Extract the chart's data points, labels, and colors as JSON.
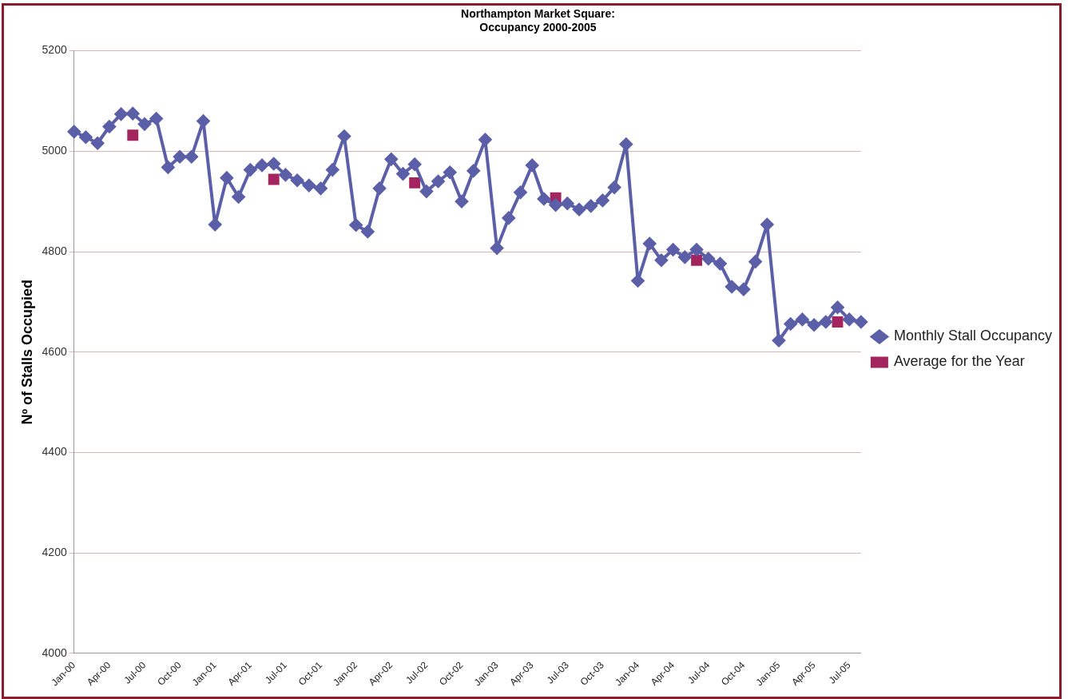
{
  "chart_data": {
    "type": "line",
    "title": "Northampton Market Square:\nOccupancy 2000-2005",
    "ylabel": "Nº of Stalls Occupied",
    "categories": [
      "Jan-00",
      null,
      null,
      "Apr-00",
      null,
      null,
      "Jul-00",
      null,
      null,
      "Oct-00",
      null,
      null,
      "Jan-01",
      null,
      null,
      "Apr-01",
      null,
      null,
      "Jul-01",
      null,
      null,
      "Oct-01",
      null,
      null,
      "Jan-02",
      null,
      null,
      "Apr-02",
      null,
      null,
      "Jul-02",
      null,
      null,
      "Oct-02",
      null,
      null,
      "Jan-03",
      null,
      null,
      "Apr-03",
      null,
      null,
      "Jul-03",
      null,
      null,
      "Oct-03",
      null,
      null,
      "Jan-04",
      null,
      null,
      "Apr-04",
      null,
      null,
      "Jul-04",
      null,
      null,
      "Oct-04",
      null,
      null,
      "Jan-05",
      null,
      null,
      "Apr-05",
      null,
      null,
      "Jul-05",
      null
    ],
    "series": [
      {
        "name": "Monthly Stall Occupancy",
        "marker": "diamond",
        "color": "#5b5fa8",
        "values": [
          5039,
          5028,
          5016,
          5049,
          5074,
          5075,
          5054,
          5065,
          4968,
          4989,
          4989,
          5060,
          4854,
          4947,
          4909,
          4963,
          4972,
          4975,
          4953,
          4942,
          4932,
          4926,
          4963,
          5030,
          4853,
          4840,
          4926,
          4984,
          4955,
          4974,
          4920,
          4940,
          4958,
          4900,
          4961,
          5023,
          4807,
          4867,
          4918,
          4972,
          4905,
          4893,
          4896,
          4884,
          4891,
          4902,
          4928,
          5014,
          4742,
          4816,
          4783,
          4804,
          4789,
          4804,
          4786,
          4776,
          4730,
          4725,
          4780,
          4854,
          4623,
          4656,
          4665,
          4654,
          4660,
          4689,
          4665,
          4660
        ]
      },
      {
        "name": "Average for the Year",
        "type": "scatter",
        "marker": "square",
        "color": "#a3245e",
        "values": [
          null,
          null,
          null,
          null,
          null,
          5032,
          null,
          null,
          null,
          null,
          null,
          null,
          null,
          null,
          null,
          null,
          null,
          4944,
          null,
          null,
          null,
          null,
          null,
          null,
          null,
          null,
          null,
          null,
          null,
          4937,
          null,
          null,
          null,
          null,
          null,
          null,
          null,
          null,
          null,
          null,
          null,
          4907,
          null,
          null,
          null,
          null,
          null,
          null,
          null,
          null,
          null,
          null,
          null,
          4783,
          null,
          null,
          null,
          null,
          null,
          null,
          null,
          null,
          null,
          null,
          null,
          4660,
          null,
          null
        ]
      }
    ],
    "ylim": [
      4000,
      5200
    ],
    "yticks": [
      4000,
      4200,
      4400,
      4600,
      4800,
      5000,
      5200
    ],
    "grid": "y",
    "legend": "right"
  }
}
